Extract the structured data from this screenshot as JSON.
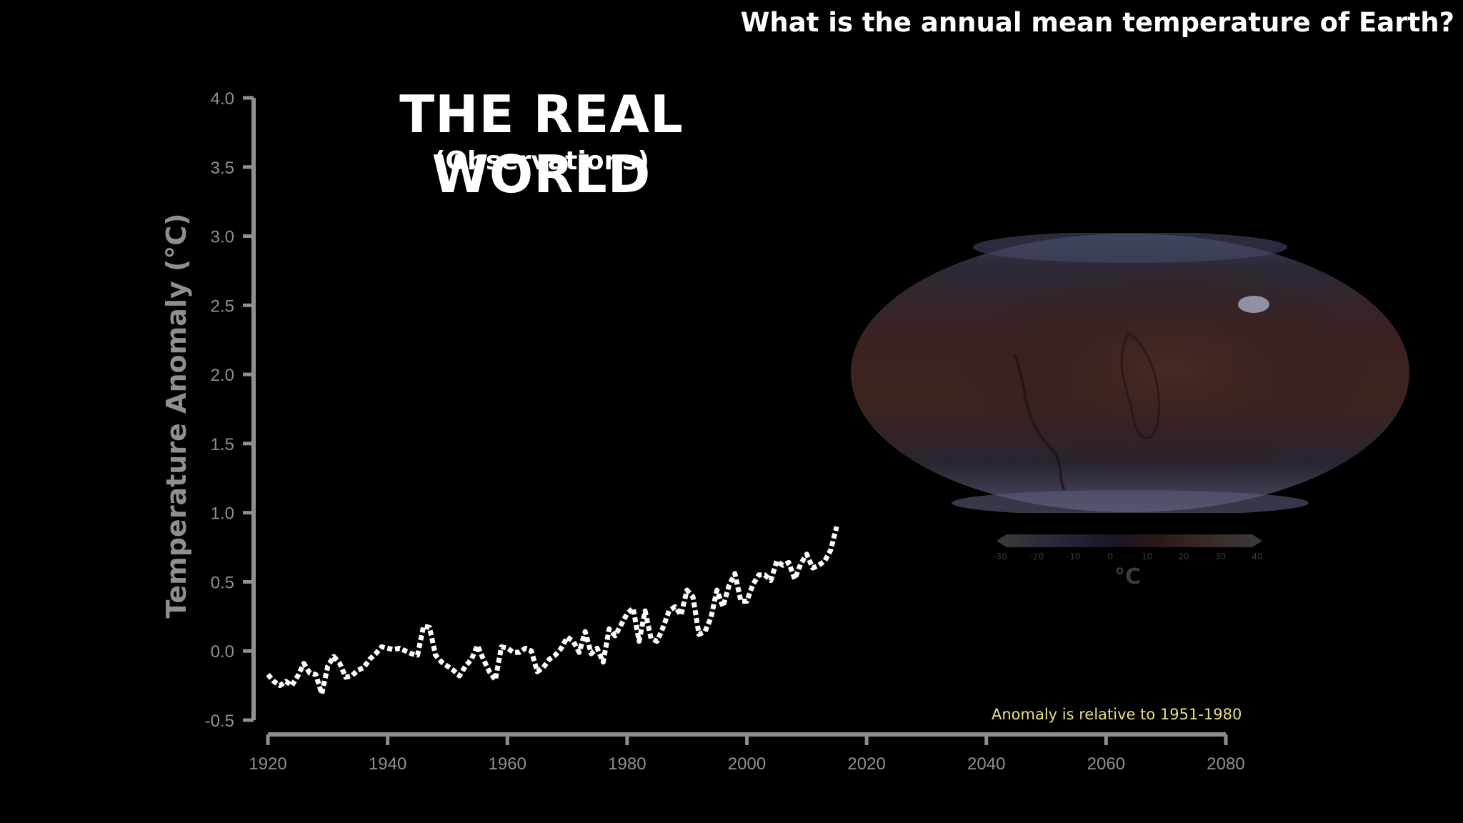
{
  "header": {
    "question": "What is the annual mean temperature of Earth?"
  },
  "chart_data": {
    "type": "line",
    "title": "THE REAL WORLD",
    "subtitle": "(Observations)",
    "ylabel": "Temperature Anomaly (°C)",
    "xlabel": "",
    "xlim": [
      1920,
      2080
    ],
    "ylim": [
      -0.5,
      4.0
    ],
    "x_ticks": [
      "1920",
      "1940",
      "1960",
      "1980",
      "2000",
      "2020",
      "2040",
      "2060",
      "2080"
    ],
    "y_ticks": [
      "4.0",
      "3.5",
      "3.0",
      "2.5",
      "2.0",
      "1.5",
      "1.0",
      "0.5",
      "0.0",
      "-0.5"
    ],
    "grid": false,
    "line_style": "dotted",
    "line_color": "#ffffff",
    "note": "Anomaly is relative to 1951-1980",
    "series": [
      {
        "x": [
          1920,
          1921,
          1922,
          1923,
          1924,
          1925,
          1926,
          1927,
          1928,
          1929,
          1930,
          1931,
          1932,
          1933,
          1934,
          1935,
          1936,
          1937,
          1938,
          1939,
          1940,
          1941,
          1942,
          1943,
          1944,
          1945,
          1946,
          1947,
          1948,
          1949,
          1950,
          1951,
          1952,
          1953,
          1954,
          1955,
          1956,
          1957,
          1958,
          1959,
          1960,
          1961,
          1962,
          1963,
          1964,
          1965,
          1966,
          1967,
          1968,
          1969,
          1970,
          1971,
          1972,
          1973,
          1974,
          1975,
          1976,
          1977,
          1978,
          1979,
          1980,
          1981,
          1982,
          1983,
          1984,
          1985,
          1986,
          1987,
          1988,
          1989,
          1990,
          1991,
          1992,
          1993,
          1994,
          1995,
          1996,
          1997,
          1998,
          1999,
          2000,
          2001,
          2002,
          2003,
          2004,
          2005,
          2006,
          2007,
          2008,
          2009,
          2010,
          2011,
          2012,
          2013,
          2014,
          2015
        ],
        "values": [
          -0.17,
          -0.22,
          -0.25,
          -0.22,
          -0.25,
          -0.18,
          -0.09,
          -0.16,
          -0.17,
          -0.31,
          -0.11,
          -0.04,
          -0.09,
          -0.19,
          -0.18,
          -0.14,
          -0.12,
          -0.06,
          -0.02,
          0.03,
          0.02,
          0.01,
          0.02,
          0.0,
          -0.02,
          -0.03,
          0.18,
          0.17,
          -0.03,
          -0.08,
          -0.11,
          -0.14,
          -0.18,
          -0.11,
          -0.06,
          0.04,
          -0.06,
          -0.15,
          -0.21,
          0.03,
          0.02,
          -0.01,
          -0.01,
          0.02,
          0.0,
          -0.15,
          -0.12,
          -0.06,
          -0.03,
          0.02,
          0.1,
          0.07,
          -0.01,
          0.14,
          -0.02,
          0.02,
          -0.08,
          0.16,
          0.11,
          0.19,
          0.27,
          0.31,
          0.07,
          0.29,
          0.09,
          0.07,
          0.17,
          0.29,
          0.32,
          0.26,
          0.44,
          0.39,
          0.12,
          0.14,
          0.24,
          0.44,
          0.32,
          0.47,
          0.56,
          0.36,
          0.36,
          0.48,
          0.55,
          0.55,
          0.51,
          0.65,
          0.62,
          0.64,
          0.52,
          0.63,
          0.7,
          0.6,
          0.62,
          0.65,
          0.73,
          0.9
        ]
      }
    ]
  },
  "map": {
    "colorbar_ticks": [
      "-30",
      "-20",
      "-10",
      "0",
      "10",
      "20",
      "30",
      "40"
    ],
    "unit": "°C"
  }
}
